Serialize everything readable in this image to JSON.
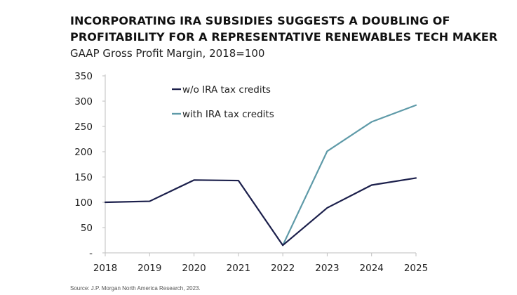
{
  "colors": {
    "series_without": "#1b1f4b",
    "series_with": "#5e9aa8",
    "axis": "#bfbfbf"
  },
  "chart_data": {
    "type": "line",
    "title": "INCORPORATING IRA SUBSIDIES SUGGESTS A DOUBLING OF PROFITABILITY FOR A REPRESENTATIVE RENEWABLES TECH MAKER",
    "title_lines": [
      "INCORPORATING IRA SUBSIDIES SUGGESTS A DOUBLING OF",
      "PROFITABILITY FOR A REPRESENTATIVE RENEWABLES TECH MAKER"
    ],
    "subtitle": "GAAP Gross Profit Margin, 2018=100",
    "xlabel": "",
    "ylabel": "",
    "x": [
      "2018",
      "2019",
      "2020",
      "2021",
      "2022",
      "2023",
      "2024",
      "2025"
    ],
    "ylim": [
      0,
      350
    ],
    "yticks": [
      0,
      50,
      100,
      150,
      200,
      250,
      300,
      350
    ],
    "ytick_labels": [
      "-",
      "50",
      "100",
      "150",
      "200",
      "250",
      "300",
      "350"
    ],
    "grid": false,
    "legend_position": "top-center",
    "series": [
      {
        "name": "w/o IRA tax credits",
        "color": "#1b1f4b",
        "values": [
          100,
          102,
          144,
          143,
          15,
          89,
          134,
          148
        ]
      },
      {
        "name": "with IRA tax credits",
        "color": "#5e9aa8",
        "values": [
          null,
          null,
          null,
          null,
          15,
          201,
          259,
          292
        ]
      }
    ]
  },
  "source": "Source: J.P. Morgan North America Research, 2023."
}
